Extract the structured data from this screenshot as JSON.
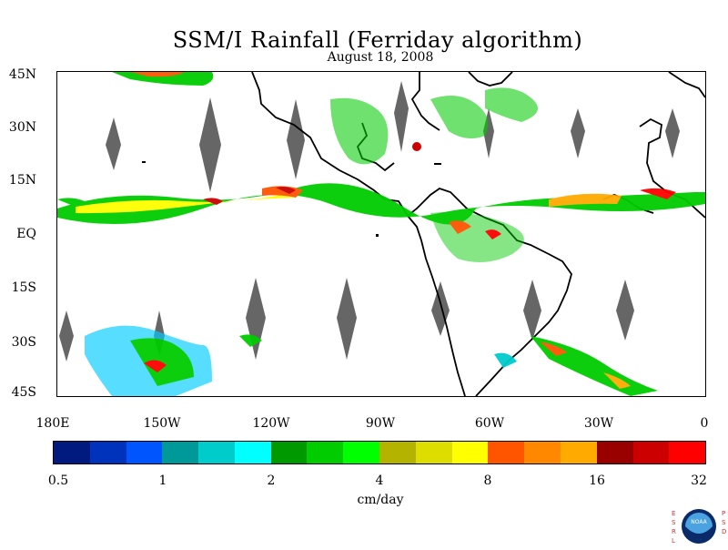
{
  "title": "SSM/I Rainfall (Ferriday algorithm)",
  "date": "August 18, 2008",
  "lat_labels": [
    "45N",
    "30N",
    "15N",
    "EQ",
    "15S",
    "30S",
    "45S"
  ],
  "lon_labels": [
    "180E",
    "150W",
    "120W",
    "90W",
    "60W",
    "30W",
    "0"
  ],
  "colorbar": {
    "colors": [
      "#001a80",
      "#0033bb",
      "#0055ff",
      "#009999",
      "#00cccc",
      "#00ffff",
      "#009900",
      "#00cc00",
      "#00ff00",
      "#b3b300",
      "#dddd00",
      "#ffff00",
      "#ff5500",
      "#ff8800",
      "#ffaa00",
      "#990000",
      "#cc0000",
      "#ff0000"
    ],
    "labels": [
      "0.5",
      "1",
      "2",
      "4",
      "8",
      "16",
      "32"
    ]
  },
  "unit": "cm/day",
  "logo": {
    "left_letters": [
      "E",
      "S",
      "R",
      "L"
    ],
    "right_letters": [
      "P",
      "S",
      "D"
    ],
    "badge_text": "NOAA"
  }
}
